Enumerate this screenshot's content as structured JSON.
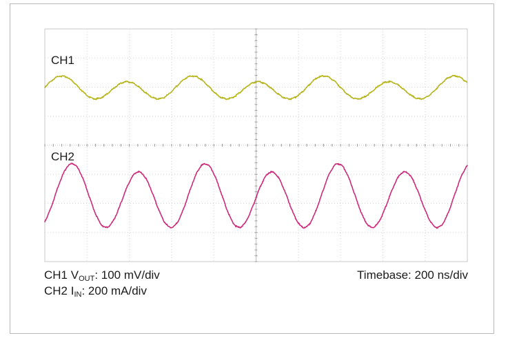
{
  "chart_data": {
    "type": "line",
    "title": "",
    "grid": true,
    "divisions": {
      "x": 10,
      "y": 8
    },
    "x": {
      "unit": "ns",
      "per_div": 200,
      "range": [
        0,
        2000
      ]
    },
    "channels": [
      {
        "name": "CH1",
        "color": "#b7b51e",
        "scale_per_div": 100,
        "unit": "mV",
        "y_range_div": [
          -1,
          1
        ],
        "waveform": {
          "approx_period_ns": 310,
          "peaks_ns": [
            80,
            400,
            710,
            1010,
            1310,
            1640,
            1950
          ],
          "shape": "sinusoidal with alternating large and small peaks"
        }
      },
      {
        "name": "CH2",
        "color": "#cc2a7a",
        "scale_per_div": 200,
        "unit": "mA",
        "y_range_div": [
          -1,
          1
        ],
        "waveform": {
          "approx_period_ns": 315,
          "peaks_ns": [
            130,
            440,
            750,
            1020,
            1360,
            1660,
            1980
          ],
          "troughs_ns": [
            270,
            570,
            860,
            1190,
            1480,
            1790
          ],
          "shape": "sinusoidal with alternating deep and shallow troughs"
        }
      }
    ]
  },
  "labels": {
    "ch1_name": "CH1",
    "ch2_name": "CH2",
    "ch1_prefix": "CH1 V",
    "ch1_sub": "OUT",
    "ch1_scale": ": 100 mV/div",
    "ch2_prefix": "CH2 I",
    "ch2_sub": "IN",
    "ch2_scale": ": 200 mA/div",
    "timebase": "Timebase: 200 ns/div"
  }
}
